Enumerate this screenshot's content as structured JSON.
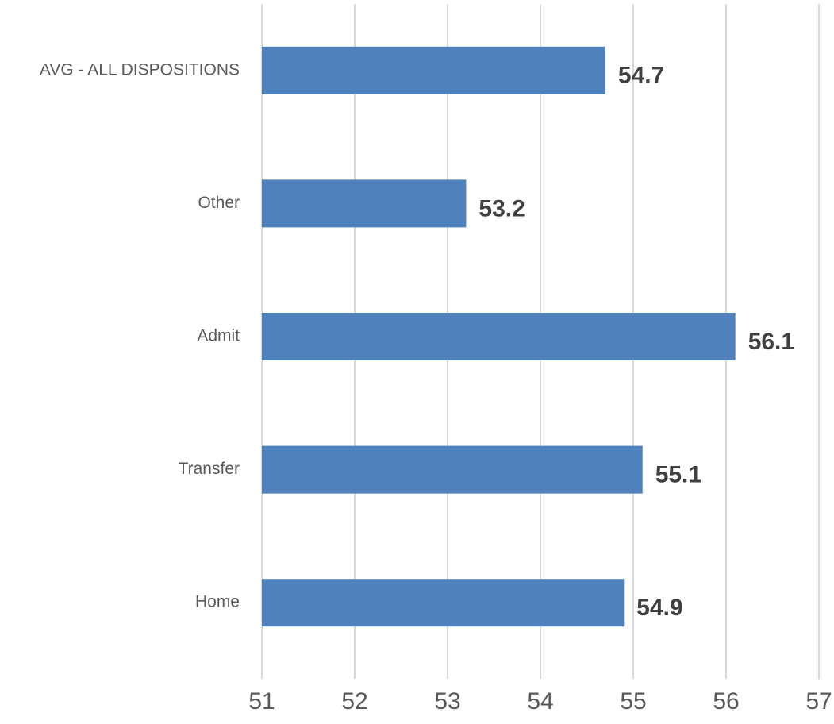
{
  "chart_data": {
    "type": "bar",
    "categories": [
      "AVG - ALL DISPOSITIONS",
      "Other",
      "Admit",
      "Transfer",
      "Home"
    ],
    "values": [
      54.7,
      53.2,
      56.1,
      55.1,
      54.9
    ],
    "color": "#4f81bd",
    "xlim": [
      51,
      57
    ],
    "xticks": [
      51,
      52,
      53,
      54,
      55,
      56,
      57
    ],
    "grid": true
  }
}
